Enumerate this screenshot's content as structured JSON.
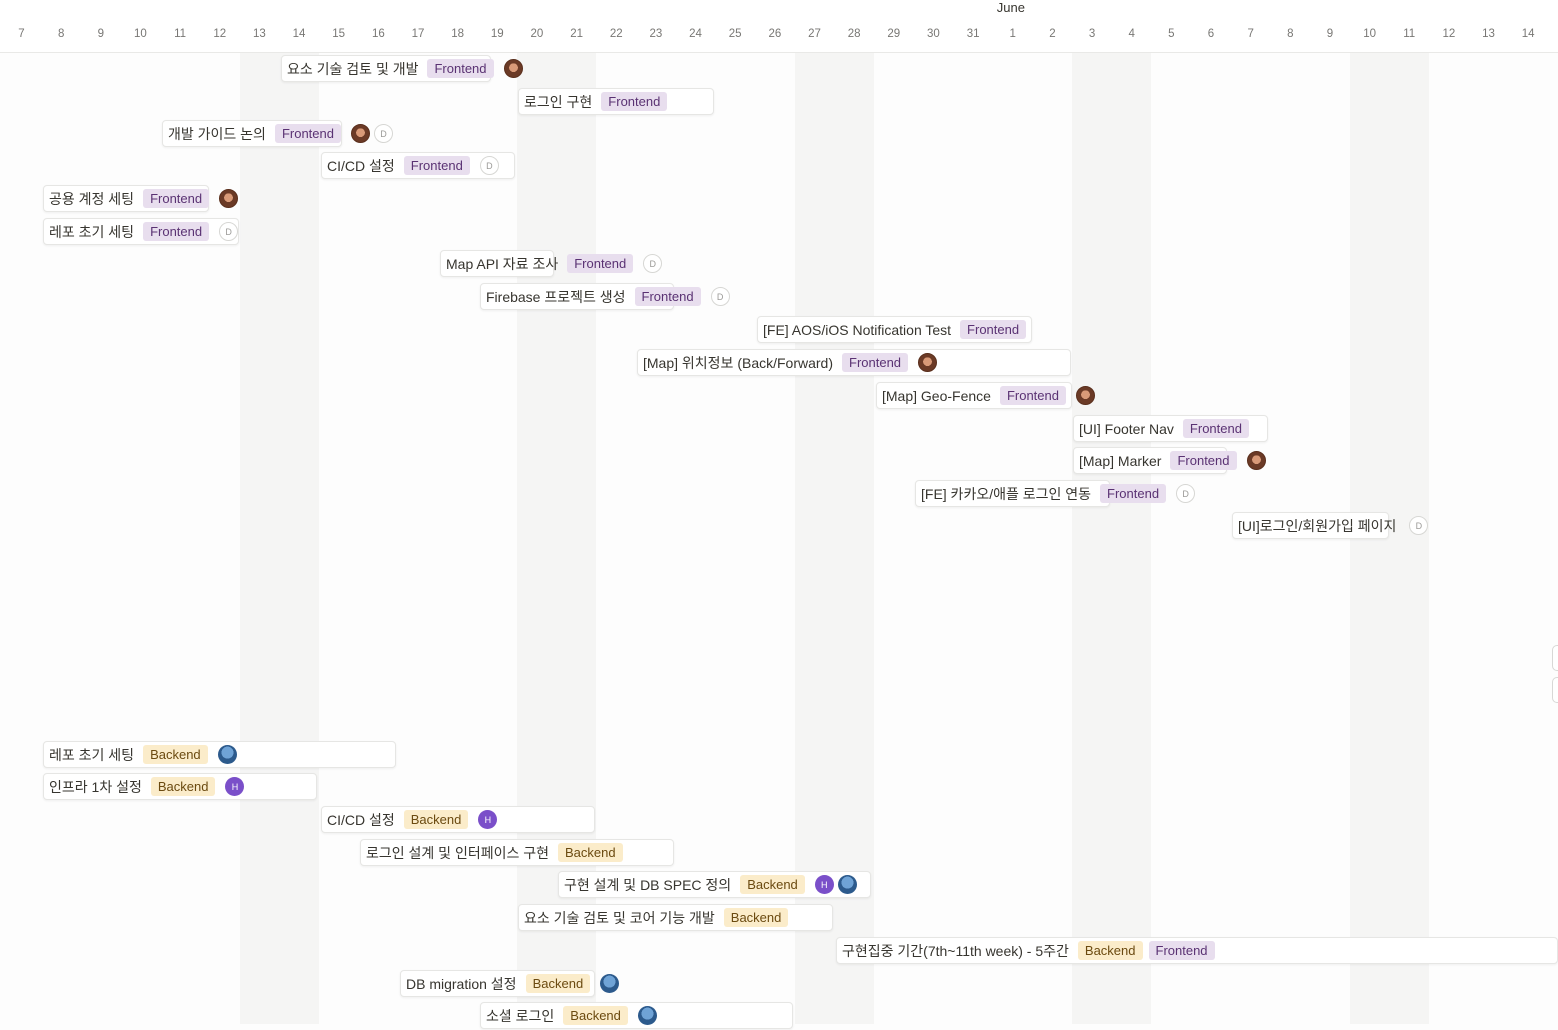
{
  "timeline": {
    "month": "June",
    "days": [
      "7",
      "8",
      "9",
      "10",
      "11",
      "12",
      "13",
      "14",
      "15",
      "16",
      "17",
      "18",
      "19",
      "20",
      "21",
      "22",
      "23",
      "24",
      "25",
      "26",
      "27",
      "28",
      "29",
      "30",
      "31",
      "1",
      "2",
      "3",
      "4",
      "5",
      "6",
      "7",
      "8",
      "9",
      "10",
      "11",
      "12",
      "13",
      "14"
    ]
  },
  "colors": {
    "frontend_tag_bg": "#e8deee",
    "backend_tag_bg": "#fbecca",
    "weekend_column": "#f5f5f4"
  },
  "tasks": [
    {
      "title": "요소 기술 검토 및 개발",
      "tags": [
        "Frontend"
      ],
      "assignees": [
        "avatar-photo"
      ]
    },
    {
      "title": "로그인 구현",
      "tags": [
        "Frontend"
      ],
      "assignees": []
    },
    {
      "title": "개발 가이드 논의",
      "tags": [
        "Frontend"
      ],
      "assignees": [
        "avatar-photo",
        "D"
      ]
    },
    {
      "title": "CI/CD 설정",
      "tags": [
        "Frontend"
      ],
      "assignees": [
        "D"
      ]
    },
    {
      "title": "공용 계정 세팅",
      "tags": [
        "Frontend"
      ],
      "assignees": [
        "avatar-photo"
      ]
    },
    {
      "title": "레포 초기 세팅",
      "tags": [
        "Frontend"
      ],
      "assignees": [
        "D"
      ]
    },
    {
      "title": "Map API 자료 조사",
      "tags": [
        "Frontend"
      ],
      "assignees": [
        "D"
      ]
    },
    {
      "title": "Firebase 프로젝트 생성",
      "tags": [
        "Frontend"
      ],
      "assignees": [
        "D"
      ]
    },
    {
      "title": "[FE] AOS/iOS Notification Test",
      "tags": [
        "Frontend"
      ],
      "assignees": []
    },
    {
      "title": "[Map] 위치정보 (Back/Forward)",
      "tags": [
        "Frontend"
      ],
      "assignees": [
        "avatar-photo"
      ]
    },
    {
      "title": "[Map] Geo-Fence",
      "tags": [
        "Frontend"
      ],
      "assignees": [
        "avatar-photo"
      ]
    },
    {
      "title": "[UI] Footer Nav",
      "tags": [
        "Frontend"
      ],
      "assignees": []
    },
    {
      "title": "[Map] Marker",
      "tags": [
        "Frontend"
      ],
      "assignees": [
        "avatar-photo"
      ]
    },
    {
      "title": "[FE] 카카오/애플 로그인 연동",
      "tags": [
        "Frontend"
      ],
      "assignees": [
        "D"
      ]
    },
    {
      "title": "[UI]로그인/회원가입 페이지",
      "tags": [],
      "assignees": [
        "D"
      ]
    },
    {
      "title": "레포 초기 세팅",
      "tags": [
        "Backend"
      ],
      "assignees": [
        "avatar-bot"
      ]
    },
    {
      "title": "인프라 1차 설정",
      "tags": [
        "Backend"
      ],
      "assignees": [
        "H"
      ]
    },
    {
      "title": "CI/CD 설정",
      "tags": [
        "Backend"
      ],
      "assignees": [
        "H"
      ]
    },
    {
      "title": "로그인 설계 및 인터페이스 구현",
      "tags": [
        "Backend"
      ],
      "assignees": []
    },
    {
      "title": "구현 설계 및 DB SPEC 정의",
      "tags": [
        "Backend"
      ],
      "assignees": [
        "H",
        "avatar-bot"
      ]
    },
    {
      "title": "요소 기술 검토 및 코어 기능 개발",
      "tags": [
        "Backend"
      ],
      "assignees": []
    },
    {
      "title": "구현집중 기간(7th~11th week) - 5주간",
      "tags": [
        "Backend",
        "Frontend"
      ],
      "assignees": []
    },
    {
      "title": "DB migration 설정",
      "tags": [
        "Backend"
      ],
      "assignees": [
        "avatar-bot"
      ]
    },
    {
      "title": "소셜 로그인",
      "tags": [
        "Backend"
      ],
      "assignees": [
        "avatar-bot"
      ]
    }
  ]
}
